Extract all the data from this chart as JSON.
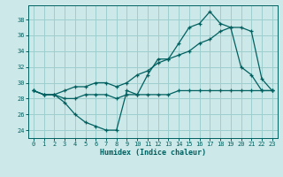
{
  "xlabel": "Humidex (Indice chaleur)",
  "bg_color": "#cce8e8",
  "grid_color": "#9ecece",
  "line_color": "#006060",
  "x": [
    0,
    1,
    2,
    3,
    4,
    5,
    6,
    7,
    8,
    9,
    10,
    11,
    12,
    13,
    14,
    15,
    16,
    17,
    18,
    19,
    20,
    21,
    22,
    23
  ],
  "line1": [
    29.0,
    28.5,
    28.5,
    27.5,
    26.0,
    25.0,
    24.5,
    24.0,
    24.0,
    29.0,
    28.5,
    31.0,
    33.0,
    33.0,
    35.0,
    37.0,
    37.5,
    39.0,
    37.5,
    37.0,
    32.0,
    31.0,
    29.0,
    29.0
  ],
  "line2": [
    29.0,
    28.5,
    28.5,
    28.0,
    28.0,
    28.5,
    28.5,
    28.5,
    28.0,
    28.5,
    28.5,
    28.5,
    28.5,
    28.5,
    29.0,
    29.0,
    29.0,
    29.0,
    29.0,
    29.0,
    29.0,
    29.0,
    29.0,
    29.0
  ],
  "line3": [
    29.0,
    28.5,
    28.5,
    29.0,
    29.5,
    29.5,
    30.0,
    30.0,
    29.5,
    30.0,
    31.0,
    31.5,
    32.5,
    33.0,
    33.5,
    34.0,
    35.0,
    35.5,
    36.5,
    37.0,
    37.0,
    36.5,
    30.5,
    29.0
  ],
  "ylim": [
    23.0,
    39.8
  ],
  "yticks": [
    24,
    26,
    28,
    30,
    32,
    34,
    36,
    38
  ],
  "xlim": [
    -0.5,
    23.5
  ],
  "xticks": [
    0,
    1,
    2,
    3,
    4,
    5,
    6,
    7,
    8,
    9,
    10,
    11,
    12,
    13,
    14,
    15,
    16,
    17,
    18,
    19,
    20,
    21,
    22,
    23
  ]
}
